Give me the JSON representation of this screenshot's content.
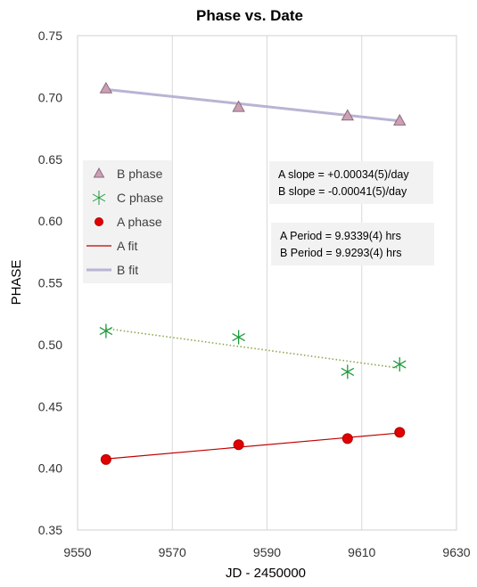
{
  "chart_data": {
    "type": "scatter",
    "title": "Phase vs. Date",
    "xlabel": "JD - 2450000",
    "ylabel": "PHASE",
    "xlim": [
      9550,
      9630
    ],
    "ylim": [
      0.35,
      0.75
    ],
    "xticks": [
      9550,
      9570,
      9590,
      9610,
      9630
    ],
    "yticks": [
      0.35,
      0.4,
      0.45,
      0.5,
      0.55,
      0.6,
      0.65,
      0.7,
      0.75
    ],
    "grid": "vertical",
    "legend_position": "left-middle",
    "series": [
      {
        "name": "B phase",
        "marker": "triangle",
        "color": "#c9a0b4",
        "edge": "#8e6a7c",
        "x": [
          9556,
          9584,
          9607,
          9618
        ],
        "y": [
          0.707,
          0.692,
          0.685,
          0.681
        ]
      },
      {
        "name": "C phase",
        "marker": "asterisk",
        "color": "#1e9a3c",
        "x": [
          9556,
          9584,
          9607,
          9618
        ],
        "y": [
          0.511,
          0.506,
          0.478,
          0.484
        ]
      },
      {
        "name": "A phase",
        "marker": "circle",
        "color": "#e00000",
        "edge": "#b00000",
        "x": [
          9556,
          9584,
          9607,
          9618
        ],
        "y": [
          0.407,
          0.419,
          0.424,
          0.429
        ]
      },
      {
        "name": "A fit",
        "line": "solid",
        "color": "#c00000",
        "x": [
          9556,
          9618
        ],
        "y": [
          0.4075,
          0.4285
        ]
      },
      {
        "name": "B fit",
        "line": "solid-thick",
        "color": "#b9b4d4",
        "x": [
          9556,
          9618
        ],
        "y": [
          0.7065,
          0.681
        ]
      }
    ],
    "extra_lines": [
      {
        "style": "dotted",
        "color": "#8aa84a",
        "x": [
          9556,
          9618
        ],
        "y": [
          0.513,
          0.481
        ]
      }
    ],
    "annotations": {
      "slopes": [
        "A slope = +0.00034(5)/day",
        "B slope = -0.00041(5)/day"
      ],
      "periods": [
        "A Period = 9.9339(4) hrs",
        "B Period = 9.9293(4) hrs"
      ]
    }
  }
}
